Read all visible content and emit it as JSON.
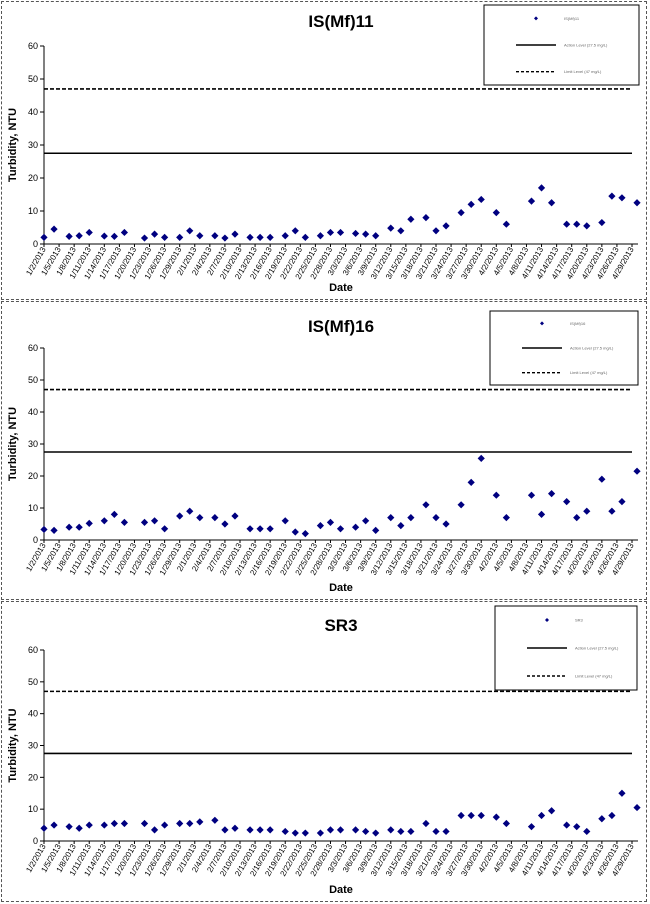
{
  "chart_data": [
    {
      "type": "scatter",
      "title": "IS(Mf)11",
      "xlabel": "Date",
      "ylabel": "Turbidity, NTU",
      "ylim": [
        0,
        60
      ],
      "yticks": [
        0,
        10,
        20,
        30,
        40,
        50,
        60
      ],
      "xticks": [
        "1/2/2013",
        "1/5/2013",
        "1/8/2013",
        "1/11/2013",
        "1/14/2013",
        "1/17/2013",
        "1/20/2013",
        "1/23/2013",
        "1/26/2013",
        "1/29/2013",
        "2/1/2013",
        "2/4/2013",
        "2/7/2013",
        "2/10/2013",
        "2/13/2013",
        "2/16/2013",
        "2/19/2013",
        "2/22/2013",
        "2/25/2013",
        "2/28/2013",
        "3/3/2013",
        "3/6/2013",
        "3/9/2013",
        "3/12/2013",
        "3/15/2013",
        "3/18/2013",
        "3/21/2013",
        "3/24/2013",
        "3/27/2013",
        "3/30/2013",
        "4/2/2013",
        "4/5/2013",
        "4/8/2013",
        "4/11/2013",
        "4/14/2013",
        "4/17/2013",
        "4/20/2013",
        "4/23/2013",
        "4/26/2013",
        "4/29/2013"
      ],
      "series": [
        {
          "type": "scatter",
          "color": "#000080",
          "x": [
            "1/2/2013",
            "1/4/2013",
            "1/7/2013",
            "1/9/2013",
            "1/11/2013",
            "1/14/2013",
            "1/16/2013",
            "1/18/2013",
            "1/22/2013",
            "1/24/2013",
            "1/26/2013",
            "1/29/2013",
            "1/31/2013",
            "2/2/2013",
            "2/5/2013",
            "2/7/2013",
            "2/9/2013",
            "2/12/2013",
            "2/14/2013",
            "2/16/2013",
            "2/19/2013",
            "2/21/2013",
            "2/23/2013",
            "2/26/2013",
            "2/28/2013",
            "3/2/2013",
            "3/5/2013",
            "3/7/2013",
            "3/9/2013",
            "3/12/2013",
            "3/14/2013",
            "3/16/2013",
            "3/19/2013",
            "3/21/2013",
            "3/23/2013",
            "3/26/2013",
            "3/28/2013",
            "3/30/2013",
            "4/2/2013",
            "4/4/2013",
            "4/9/2013",
            "4/11/2013",
            "4/13/2013",
            "4/16/2013",
            "4/18/2013",
            "4/20/2013",
            "4/23/2013",
            "4/25/2013",
            "4/27/2013",
            "4/30/2013"
          ],
          "values": [
            2,
            4.5,
            2.3,
            2.5,
            3.5,
            2.4,
            2.3,
            3.5,
            1.8,
            3,
            2,
            2,
            4,
            2.5,
            2.5,
            1.8,
            3,
            2,
            2,
            2,
            2.5,
            4,
            2,
            2.5,
            3.5,
            3.5,
            3.2,
            3,
            2.5,
            4.8,
            4,
            7.5,
            8,
            4,
            5.5,
            9.5,
            12,
            13.5,
            9.5,
            6,
            13,
            17,
            12.5,
            6,
            6,
            5.5,
            6.5,
            14.5,
            14,
            12.5
          ]
        },
        {
          "name": "Action Level (27.5 mg/L)",
          "type": "line",
          "style": "solid",
          "color": "#000000",
          "values": [
            27.5
          ]
        },
        {
          "name": "Limit Level (47 mg/L)",
          "type": "line",
          "style": "dashed",
          "color": "#000000",
          "values": [
            47
          ]
        }
      ],
      "legend": [
        "IS(Mf)11",
        "Action Level (27.5 mg/L)",
        "Limit Level (47 mg/L)"
      ],
      "legend_position": "top-right",
      "grid": false
    },
    {
      "type": "scatter",
      "title": "IS(Mf)16",
      "xlabel": "Date",
      "ylabel": "Turbidity, NTU",
      "ylim": [
        0,
        60
      ],
      "yticks": [
        0,
        10,
        20,
        30,
        40,
        50,
        60
      ],
      "xticks": [
        "1/2/2013",
        "1/5/2013",
        "1/8/2013",
        "1/11/2013",
        "1/14/2013",
        "1/17/2013",
        "1/20/2013",
        "1/23/2013",
        "1/26/2013",
        "1/29/2013",
        "2/1/2013",
        "2/4/2013",
        "2/7/2013",
        "2/10/2013",
        "2/13/2013",
        "2/16/2013",
        "2/19/2013",
        "2/22/2013",
        "2/25/2013",
        "2/28/2013",
        "3/3/2013",
        "3/6/2013",
        "3/9/2013",
        "3/12/2013",
        "3/15/2013",
        "3/18/2013",
        "3/21/2013",
        "3/24/2013",
        "3/27/2013",
        "3/30/2013",
        "4/2/2013",
        "4/5/2013",
        "4/8/2013",
        "4/11/2013",
        "4/14/2013",
        "4/17/2013",
        "4/20/2013",
        "4/23/2013",
        "4/26/2013",
        "4/29/2013"
      ],
      "series": [
        {
          "type": "scatter",
          "color": "#000080",
          "x": [
            "1/2/2013",
            "1/4/2013",
            "1/7/2013",
            "1/9/2013",
            "1/11/2013",
            "1/14/2013",
            "1/16/2013",
            "1/18/2013",
            "1/22/2013",
            "1/24/2013",
            "1/26/2013",
            "1/29/2013",
            "1/31/2013",
            "2/2/2013",
            "2/5/2013",
            "2/7/2013",
            "2/9/2013",
            "2/12/2013",
            "2/14/2013",
            "2/16/2013",
            "2/19/2013",
            "2/21/2013",
            "2/23/2013",
            "2/26/2013",
            "2/28/2013",
            "3/2/2013",
            "3/5/2013",
            "3/7/2013",
            "3/9/2013",
            "3/12/2013",
            "3/14/2013",
            "3/16/2013",
            "3/19/2013",
            "3/21/2013",
            "3/23/2013",
            "3/26/2013",
            "3/28/2013",
            "3/30/2013",
            "4/2/2013",
            "4/4/2013",
            "4/9/2013",
            "4/11/2013",
            "4/13/2013",
            "4/16/2013",
            "4/18/2013",
            "4/20/2013",
            "4/23/2013",
            "4/25/2013",
            "4/27/2013",
            "4/30/2013"
          ],
          "values": [
            3.3,
            3,
            4,
            4,
            5.2,
            6,
            8,
            5.5,
            5.5,
            6,
            3.5,
            7.5,
            9,
            7,
            7,
            5,
            7.5,
            3.5,
            3.5,
            3.5,
            6,
            2.5,
            2,
            4.5,
            5.5,
            3.5,
            4,
            6,
            3,
            7,
            4.5,
            7,
            11,
            7,
            5,
            11,
            18,
            25.5,
            14,
            7,
            14,
            8,
            14.5,
            12,
            7,
            9,
            19,
            9,
            12,
            21.5
          ]
        },
        {
          "name": "Action Level (27.5 mg/L)",
          "type": "line",
          "style": "solid",
          "color": "#000000",
          "values": [
            27.5
          ]
        },
        {
          "name": "Limit Level (47 mg/L)",
          "type": "line",
          "style": "dashed",
          "color": "#000000",
          "values": [
            47
          ]
        }
      ],
      "legend": [
        "IS(Mf)16",
        "Action Level (27.5 mg/L)",
        "Limit Level (47 mg/L)"
      ],
      "legend_position": "top-right",
      "grid": false
    },
    {
      "type": "scatter",
      "title": "SR3",
      "xlabel": "Date",
      "ylabel": "Turbidity, NTU",
      "ylim": [
        0,
        60
      ],
      "yticks": [
        0,
        10,
        20,
        30,
        40,
        50,
        60
      ],
      "xticks": [
        "1/2/2013",
        "1/5/2013",
        "1/8/2013",
        "1/11/2013",
        "1/14/2013",
        "1/17/2013",
        "1/20/2013",
        "1/23/2013",
        "1/26/2013",
        "1/29/2013",
        "2/1/2013",
        "2/4/2013",
        "2/7/2013",
        "2/10/2013",
        "2/13/2013",
        "2/16/2013",
        "2/19/2013",
        "2/22/2013",
        "2/25/2013",
        "2/28/2013",
        "3/3/2013",
        "3/6/2013",
        "3/9/2013",
        "3/12/2013",
        "3/15/2013",
        "3/18/2013",
        "3/21/2013",
        "3/24/2013",
        "3/27/2013",
        "3/30/2013",
        "4/2/2013",
        "4/5/2013",
        "4/8/2013",
        "4/11/2013",
        "4/14/2013",
        "4/17/2013",
        "4/20/2013",
        "4/23/2013",
        "4/26/2013",
        "4/29/2013"
      ],
      "series": [
        {
          "type": "scatter",
          "color": "#000080",
          "x": [
            "1/2/2013",
            "1/4/2013",
            "1/7/2013",
            "1/9/2013",
            "1/11/2013",
            "1/14/2013",
            "1/16/2013",
            "1/18/2013",
            "1/22/2013",
            "1/24/2013",
            "1/26/2013",
            "1/29/2013",
            "1/31/2013",
            "2/2/2013",
            "2/5/2013",
            "2/7/2013",
            "2/9/2013",
            "2/12/2013",
            "2/14/2013",
            "2/16/2013",
            "2/19/2013",
            "2/21/2013",
            "2/23/2013",
            "2/26/2013",
            "2/28/2013",
            "3/2/2013",
            "3/5/2013",
            "3/7/2013",
            "3/9/2013",
            "3/12/2013",
            "3/14/2013",
            "3/16/2013",
            "3/19/2013",
            "3/21/2013",
            "3/23/2013",
            "3/26/2013",
            "3/28/2013",
            "3/30/2013",
            "4/2/2013",
            "4/4/2013",
            "4/9/2013",
            "4/11/2013",
            "4/13/2013",
            "4/16/2013",
            "4/18/2013",
            "4/20/2013",
            "4/23/2013",
            "4/25/2013",
            "4/27/2013",
            "4/30/2013"
          ],
          "values": [
            4,
            5,
            4.5,
            4,
            5,
            5,
            5.5,
            5.5,
            5.5,
            3.5,
            5,
            5.5,
            5.5,
            6,
            6.5,
            3.5,
            4,
            3.5,
            3.5,
            3.5,
            3,
            2.5,
            2.5,
            2.5,
            3.5,
            3.5,
            3.5,
            3,
            2.5,
            3.5,
            3,
            3,
            5.5,
            3,
            3,
            8,
            8,
            8,
            7.5,
            5.5,
            4.5,
            8,
            9.5,
            5,
            4.5,
            3,
            7,
            8,
            15,
            10.5
          ]
        },
        {
          "name": "Action Level (27.5 mg/L)",
          "type": "line",
          "style": "solid",
          "color": "#000000",
          "values": [
            27.5
          ]
        },
        {
          "name": "Limit Level (47 mg/L)",
          "type": "line",
          "style": "dashed",
          "color": "#000000",
          "values": [
            47
          ]
        }
      ],
      "legend": [
        "SR3",
        "Action Level (27.5 mg/L)",
        "Limit Level (47 mg/L)"
      ],
      "legend_position": "top-right",
      "grid": false
    }
  ]
}
